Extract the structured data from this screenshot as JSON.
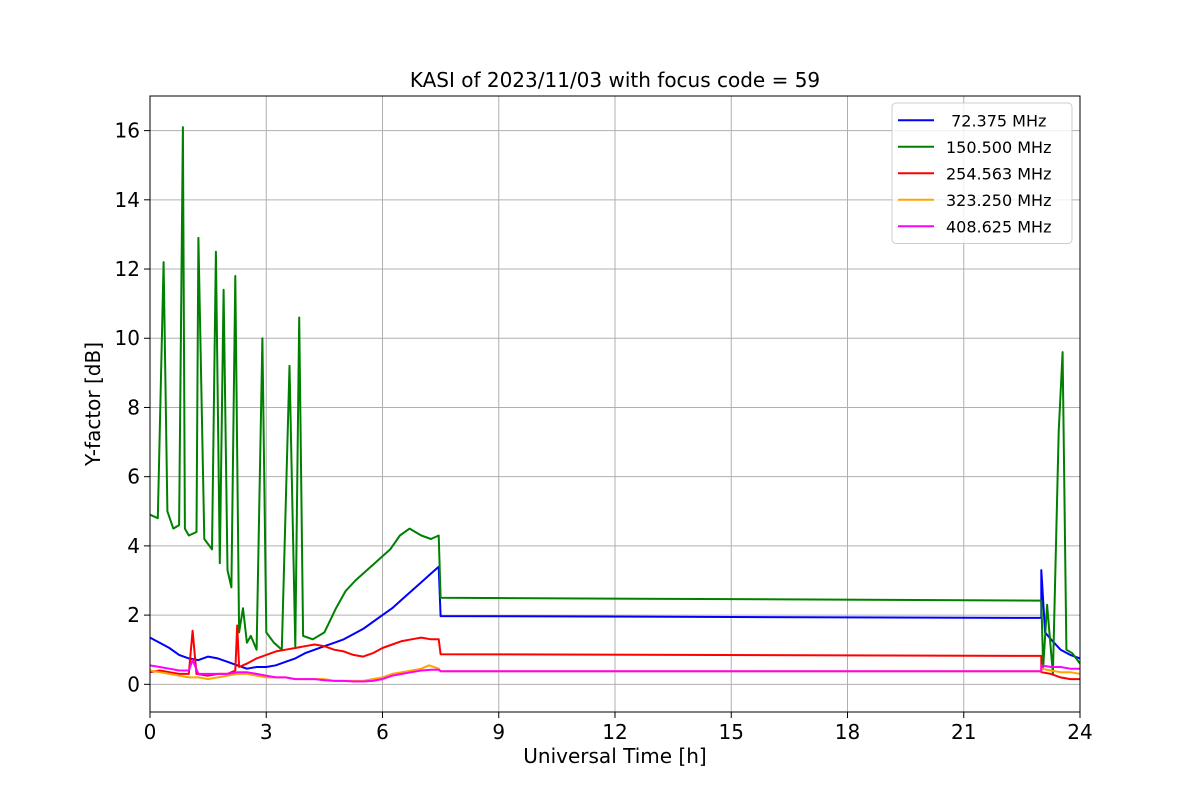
{
  "chart_data": {
    "type": "line",
    "title": "KASI of 2023/11/03 with focus code = 59",
    "xlabel": "Universal Time [h]",
    "ylabel": "Y-factor [dB]",
    "xlim": [
      0,
      24
    ],
    "ylim": [
      -0.8,
      17.0
    ],
    "xticks": [
      0,
      3,
      6,
      9,
      12,
      15,
      18,
      21,
      24
    ],
    "yticks": [
      0,
      2,
      4,
      6,
      8,
      10,
      12,
      14,
      16
    ],
    "grid": true,
    "legend_position": "top-right",
    "series": [
      {
        "name": " 72.375 MHz",
        "color": "#0000ff",
        "x": [
          0,
          0.25,
          0.5,
          0.75,
          1.0,
          1.25,
          1.5,
          1.75,
          2.0,
          2.25,
          2.5,
          2.75,
          3.0,
          3.25,
          3.5,
          3.75,
          4.0,
          4.25,
          4.5,
          4.75,
          5.0,
          5.25,
          5.5,
          5.75,
          6.0,
          6.25,
          6.5,
          6.75,
          7.0,
          7.25,
          7.45,
          7.5,
          23.0,
          23.0,
          23.1,
          23.25,
          23.5,
          23.75,
          24.0
        ],
        "y": [
          1.35,
          1.2,
          1.05,
          0.85,
          0.75,
          0.7,
          0.8,
          0.75,
          0.65,
          0.55,
          0.45,
          0.5,
          0.5,
          0.55,
          0.65,
          0.75,
          0.9,
          1.0,
          1.1,
          1.2,
          1.3,
          1.45,
          1.6,
          1.8,
          2.0,
          2.2,
          2.45,
          2.7,
          2.95,
          3.2,
          3.4,
          1.97,
          1.92,
          3.3,
          1.5,
          1.3,
          1.0,
          0.85,
          0.75
        ]
      },
      {
        "name": "150.500 MHz",
        "color": "#008000",
        "x": [
          0,
          0.2,
          0.35,
          0.45,
          0.6,
          0.75,
          0.85,
          0.9,
          1.0,
          1.2,
          1.25,
          1.4,
          1.6,
          1.7,
          1.8,
          1.9,
          2.0,
          2.1,
          2.2,
          2.3,
          2.4,
          2.5,
          2.6,
          2.75,
          2.9,
          3.0,
          3.2,
          3.4,
          3.6,
          3.75,
          3.85,
          3.95,
          4.2,
          4.5,
          4.8,
          5.05,
          5.3,
          5.6,
          5.9,
          6.2,
          6.45,
          6.7,
          7.0,
          7.25,
          7.45,
          7.5,
          23.0,
          23.05,
          23.15,
          23.3,
          23.45,
          23.55,
          23.65,
          23.8,
          24.0
        ],
        "y": [
          4.9,
          4.8,
          12.2,
          5.0,
          4.5,
          4.6,
          16.1,
          4.5,
          4.3,
          4.4,
          12.9,
          4.2,
          3.9,
          12.5,
          3.5,
          11.4,
          3.3,
          2.8,
          11.8,
          1.5,
          2.2,
          1.2,
          1.4,
          1.0,
          10.0,
          1.5,
          1.2,
          1.0,
          9.2,
          1.1,
          10.6,
          1.4,
          1.3,
          1.5,
          2.2,
          2.7,
          3.0,
          3.3,
          3.6,
          3.9,
          4.3,
          4.5,
          4.3,
          4.2,
          4.3,
          2.5,
          2.42,
          0.5,
          2.3,
          0.3,
          7.3,
          9.6,
          1.0,
          0.9,
          0.6
        ]
      },
      {
        "name": "254.563 MHz",
        "color": "#ff0000",
        "x": [
          0,
          0.25,
          0.5,
          0.75,
          1.0,
          1.1,
          1.2,
          1.5,
          1.75,
          2.0,
          2.2,
          2.25,
          2.3,
          2.5,
          2.75,
          3.0,
          3.25,
          3.5,
          3.75,
          4.0,
          4.25,
          4.5,
          4.75,
          5.0,
          5.25,
          5.5,
          5.75,
          6.0,
          6.25,
          6.5,
          6.75,
          7.0,
          7.25,
          7.45,
          7.5,
          23.0,
          23.0,
          23.25,
          23.5,
          23.75,
          24.0
        ],
        "y": [
          0.35,
          0.4,
          0.35,
          0.3,
          0.3,
          1.55,
          0.3,
          0.25,
          0.3,
          0.3,
          0.4,
          1.7,
          0.5,
          0.6,
          0.75,
          0.85,
          0.95,
          1.0,
          1.05,
          1.1,
          1.15,
          1.1,
          1.0,
          0.95,
          0.85,
          0.8,
          0.9,
          1.05,
          1.15,
          1.25,
          1.3,
          1.35,
          1.3,
          1.3,
          0.87,
          0.82,
          0.35,
          0.3,
          0.2,
          0.15,
          0.15
        ]
      },
      {
        "name": "323.250 MHz",
        "color": "#ffa500",
        "x": [
          0,
          0.25,
          0.5,
          0.75,
          1.0,
          1.25,
          1.5,
          1.75,
          2.0,
          2.25,
          2.5,
          2.75,
          3.0,
          3.25,
          3.5,
          3.75,
          4.0,
          4.25,
          4.5,
          4.75,
          5.0,
          5.25,
          5.5,
          5.75,
          6.0,
          6.25,
          6.5,
          6.75,
          7.0,
          7.2,
          7.45,
          7.5,
          23.0,
          23.0,
          23.25,
          23.5,
          23.75,
          24.0
        ],
        "y": [
          0.4,
          0.35,
          0.3,
          0.25,
          0.2,
          0.2,
          0.15,
          0.2,
          0.25,
          0.3,
          0.3,
          0.25,
          0.2,
          0.2,
          0.2,
          0.15,
          0.15,
          0.15,
          0.15,
          0.1,
          0.1,
          0.1,
          0.1,
          0.15,
          0.2,
          0.3,
          0.35,
          0.4,
          0.45,
          0.55,
          0.45,
          0.38,
          0.38,
          0.45,
          0.4,
          0.35,
          0.35,
          0.3
        ]
      },
      {
        "name": "408.625 MHz",
        "color": "#ff00ff",
        "x": [
          0,
          0.25,
          0.5,
          0.75,
          1.0,
          1.1,
          1.25,
          1.5,
          1.75,
          2.0,
          2.25,
          2.5,
          2.75,
          3.0,
          3.25,
          3.5,
          3.75,
          4.0,
          4.25,
          4.5,
          4.75,
          5.0,
          5.25,
          5.5,
          5.75,
          6.0,
          6.25,
          6.5,
          6.75,
          7.0,
          7.25,
          7.45,
          7.5,
          23.0,
          23.0,
          23.25,
          23.5,
          23.75,
          24.0
        ],
        "y": [
          0.55,
          0.5,
          0.45,
          0.4,
          0.4,
          0.7,
          0.3,
          0.3,
          0.3,
          0.3,
          0.35,
          0.35,
          0.3,
          0.25,
          0.2,
          0.2,
          0.15,
          0.15,
          0.15,
          0.12,
          0.1,
          0.1,
          0.08,
          0.08,
          0.1,
          0.15,
          0.25,
          0.3,
          0.35,
          0.4,
          0.42,
          0.42,
          0.38,
          0.38,
          0.55,
          0.5,
          0.5,
          0.45,
          0.45
        ]
      }
    ]
  }
}
